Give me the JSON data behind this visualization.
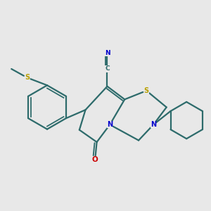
{
  "bg_color": "#e8e8e8",
  "bond_color": "#2d6b6b",
  "bond_width": 1.6,
  "S_color": "#b8a000",
  "N_color": "#0000cc",
  "O_color": "#cc0000",
  "C_color": "#2d6b6b",
  "figsize": [
    3.0,
    3.0
  ],
  "dpi": 100,
  "xlim": [
    0,
    10
  ],
  "ylim": [
    0,
    10
  ]
}
